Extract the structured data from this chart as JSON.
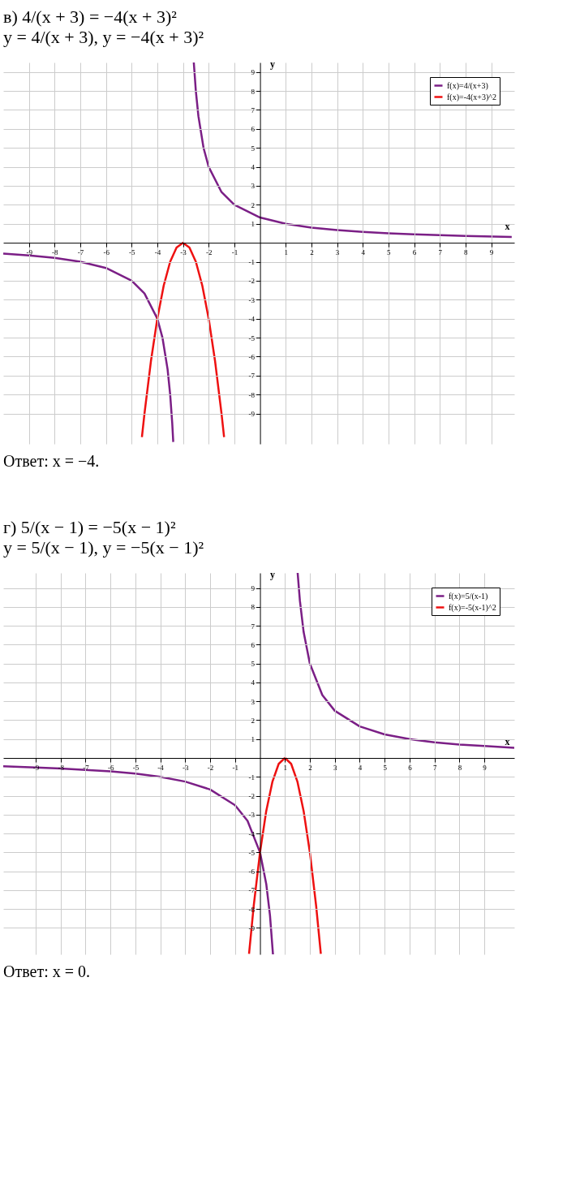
{
  "chart_data": [
    {
      "type": "line",
      "title": "в) 4/(x + 3) = −4(x + 3)²",
      "subtitle": "y = 4/(x + 3),      y = −4(x + 3)²",
      "xlabel": "x",
      "ylabel": "y",
      "annotations": [
        "Ответ: x = −4."
      ],
      "xlim": [
        -10,
        9.9
      ],
      "ylim": [
        -10.6,
        9.5
      ],
      "xticks": [
        -9,
        -8,
        -7,
        -6,
        -5,
        -4,
        -3,
        -2,
        -1,
        1,
        2,
        3,
        4,
        5,
        6,
        7,
        8,
        9
      ],
      "yticks": [
        -9,
        -8,
        -7,
        -6,
        -5,
        -4,
        -3,
        -2,
        -1,
        1,
        2,
        3,
        4,
        5,
        6,
        7,
        8,
        9
      ],
      "grid": true,
      "legend": "top right",
      "marker": "none",
      "line_style": "solid",
      "series": [
        {
          "name": "f(x)=4/(x+3)",
          "color": "#7b1f86",
          "x": [
            -10,
            -9,
            -8,
            -7,
            -6,
            -5,
            -4.5,
            -4,
            -3.8,
            -3.6,
            -3.5,
            -3.42,
            -3.38,
            -3,
            -2.58,
            -2.5,
            -2.4,
            -2.2,
            -2,
            -1.5,
            -1,
            0,
            1,
            2,
            3,
            4,
            5,
            6,
            7,
            8,
            9.8
          ],
          "values": [
            -0.57,
            -0.67,
            -0.8,
            -1,
            -1.33,
            -2,
            -2.67,
            -4,
            -5,
            -6.67,
            -8,
            -9.5,
            -10.5,
            null,
            9.5,
            8,
            6.67,
            5,
            4,
            2.67,
            2,
            1.33,
            1,
            0.8,
            0.67,
            0.57,
            0.5,
            0.44,
            0.4,
            0.36,
            0.31
          ]
        },
        {
          "name": "f(x)=-4(x+3)^2",
          "color": "#ee1111",
          "x": [
            -4.6,
            -4.5,
            -4.25,
            -4,
            -3.75,
            -3.5,
            -3.25,
            -3,
            -2.75,
            -2.5,
            -2.25,
            -2,
            -1.75,
            -1.5,
            -1.4
          ],
          "values": [
            -10.24,
            -9,
            -6.25,
            -4,
            -2.25,
            -1,
            -0.25,
            0,
            -0.25,
            -1,
            -2.25,
            -4,
            -6.25,
            -9,
            -10.24
          ]
        }
      ]
    },
    {
      "type": "line",
      "title": "г) 5/(x − 1) = −5(x − 1)²",
      "subtitle": "y = 5/(x − 1),      y = −5(x − 1)²",
      "xlabel": "x",
      "ylabel": "y",
      "annotations": [
        "Ответ: x = 0."
      ],
      "xlim": [
        -10.3,
        10.2
      ],
      "ylim": [
        -10.4,
        9.8
      ],
      "xticks": [
        -9,
        -8,
        -7,
        -6,
        -5,
        -4,
        -3,
        -2,
        -1,
        1,
        2,
        3,
        4,
        5,
        6,
        7,
        8,
        9
      ],
      "yticks": [
        -9,
        -8,
        -7,
        -6,
        -5,
        -4,
        -3,
        -2,
        -1,
        1,
        2,
        3,
        4,
        5,
        6,
        7,
        8,
        9
      ],
      "grid": true,
      "legend": "top right",
      "marker": "none",
      "line_style": "solid",
      "series": [
        {
          "name": "f(x)=5/(x-1)",
          "color": "#7b1f86",
          "x": [
            -10.3,
            -9,
            -8,
            -7,
            -6,
            -5,
            -4,
            -3,
            -2,
            -1,
            -0.5,
            0,
            0.25,
            0.4,
            0.52,
            1,
            1.51,
            1.6,
            1.75,
            2,
            2.5,
            3,
            4,
            5,
            6,
            7,
            8,
            9,
            10.2
          ],
          "values": [
            -0.44,
            -0.5,
            -0.56,
            -0.63,
            -0.71,
            -0.83,
            -1,
            -1.25,
            -1.67,
            -2.5,
            -3.33,
            -5,
            -6.67,
            -8.33,
            -10.4,
            null,
            9.8,
            8.33,
            6.67,
            5,
            3.33,
            2.5,
            1.67,
            1.25,
            1,
            0.83,
            0.71,
            0.63,
            0.54
          ]
        },
        {
          "name": "f(x)=-5(x-1)^2",
          "color": "#ee1111",
          "x": [
            -0.44,
            -0.25,
            0,
            0.25,
            0.5,
            0.75,
            1,
            1.25,
            1.5,
            1.75,
            2,
            2.25,
            2.44
          ],
          "values": [
            -10.37,
            -7.81,
            -5,
            -2.81,
            -1.25,
            -0.31,
            0,
            -0.31,
            -1.25,
            -2.81,
            -5,
            -7.81,
            -10.37
          ]
        }
      ]
    }
  ]
}
